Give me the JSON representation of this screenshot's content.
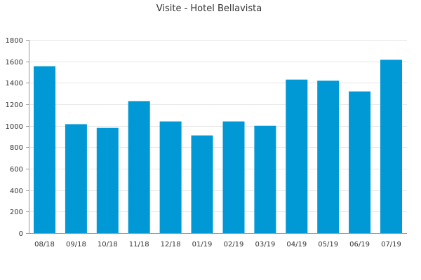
{
  "chart_data": {
    "type": "bar",
    "title": "Visite - Hotel Bellavista",
    "xlabel": "",
    "ylabel": "",
    "categories": [
      "08/18",
      "09/18",
      "10/18",
      "11/18",
      "12/18",
      "01/19",
      "02/19",
      "03/19",
      "04/19",
      "05/19",
      "06/19",
      "07/19"
    ],
    "values": [
      1555,
      1015,
      980,
      1230,
      1040,
      910,
      1040,
      1000,
      1430,
      1420,
      1320,
      1615
    ],
    "ylim": [
      0,
      1800
    ],
    "yticks": [
      0,
      200,
      400,
      600,
      800,
      1000,
      1200,
      1400,
      1600,
      1800
    ],
    "grid": true,
    "legend": "none",
    "colors": {
      "bar": "#0099d6",
      "grid": "#e6e6e6",
      "axis": "#999999"
    }
  }
}
